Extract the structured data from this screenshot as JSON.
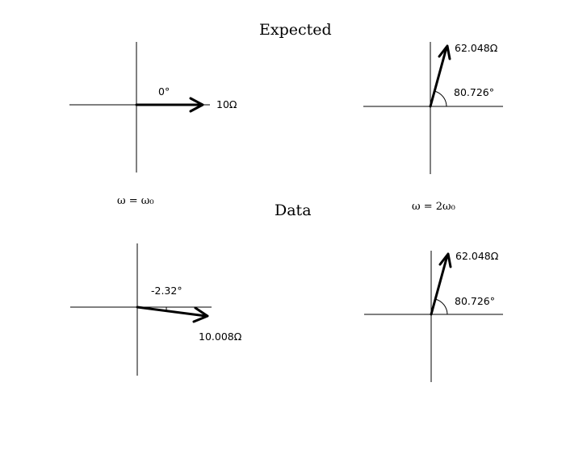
{
  "headings": {
    "expected": "Expected",
    "data": "Data"
  },
  "conditions": {
    "first": "ω = ω₀",
    "second": "ω = 2ω₀"
  },
  "phasors": {
    "expected_w0": {
      "magnitude": "10Ω",
      "angle": "0°"
    },
    "expected_2w0": {
      "magnitude": "62.048Ω",
      "angle": "80.726°"
    },
    "data_w0": {
      "magnitude": "10.008Ω",
      "angle": "-2.32°"
    },
    "data_2w0": {
      "magnitude": "62.048Ω",
      "angle": "80.726°"
    }
  },
  "colors": {
    "ink": "#000000",
    "background": "#ffffff"
  }
}
